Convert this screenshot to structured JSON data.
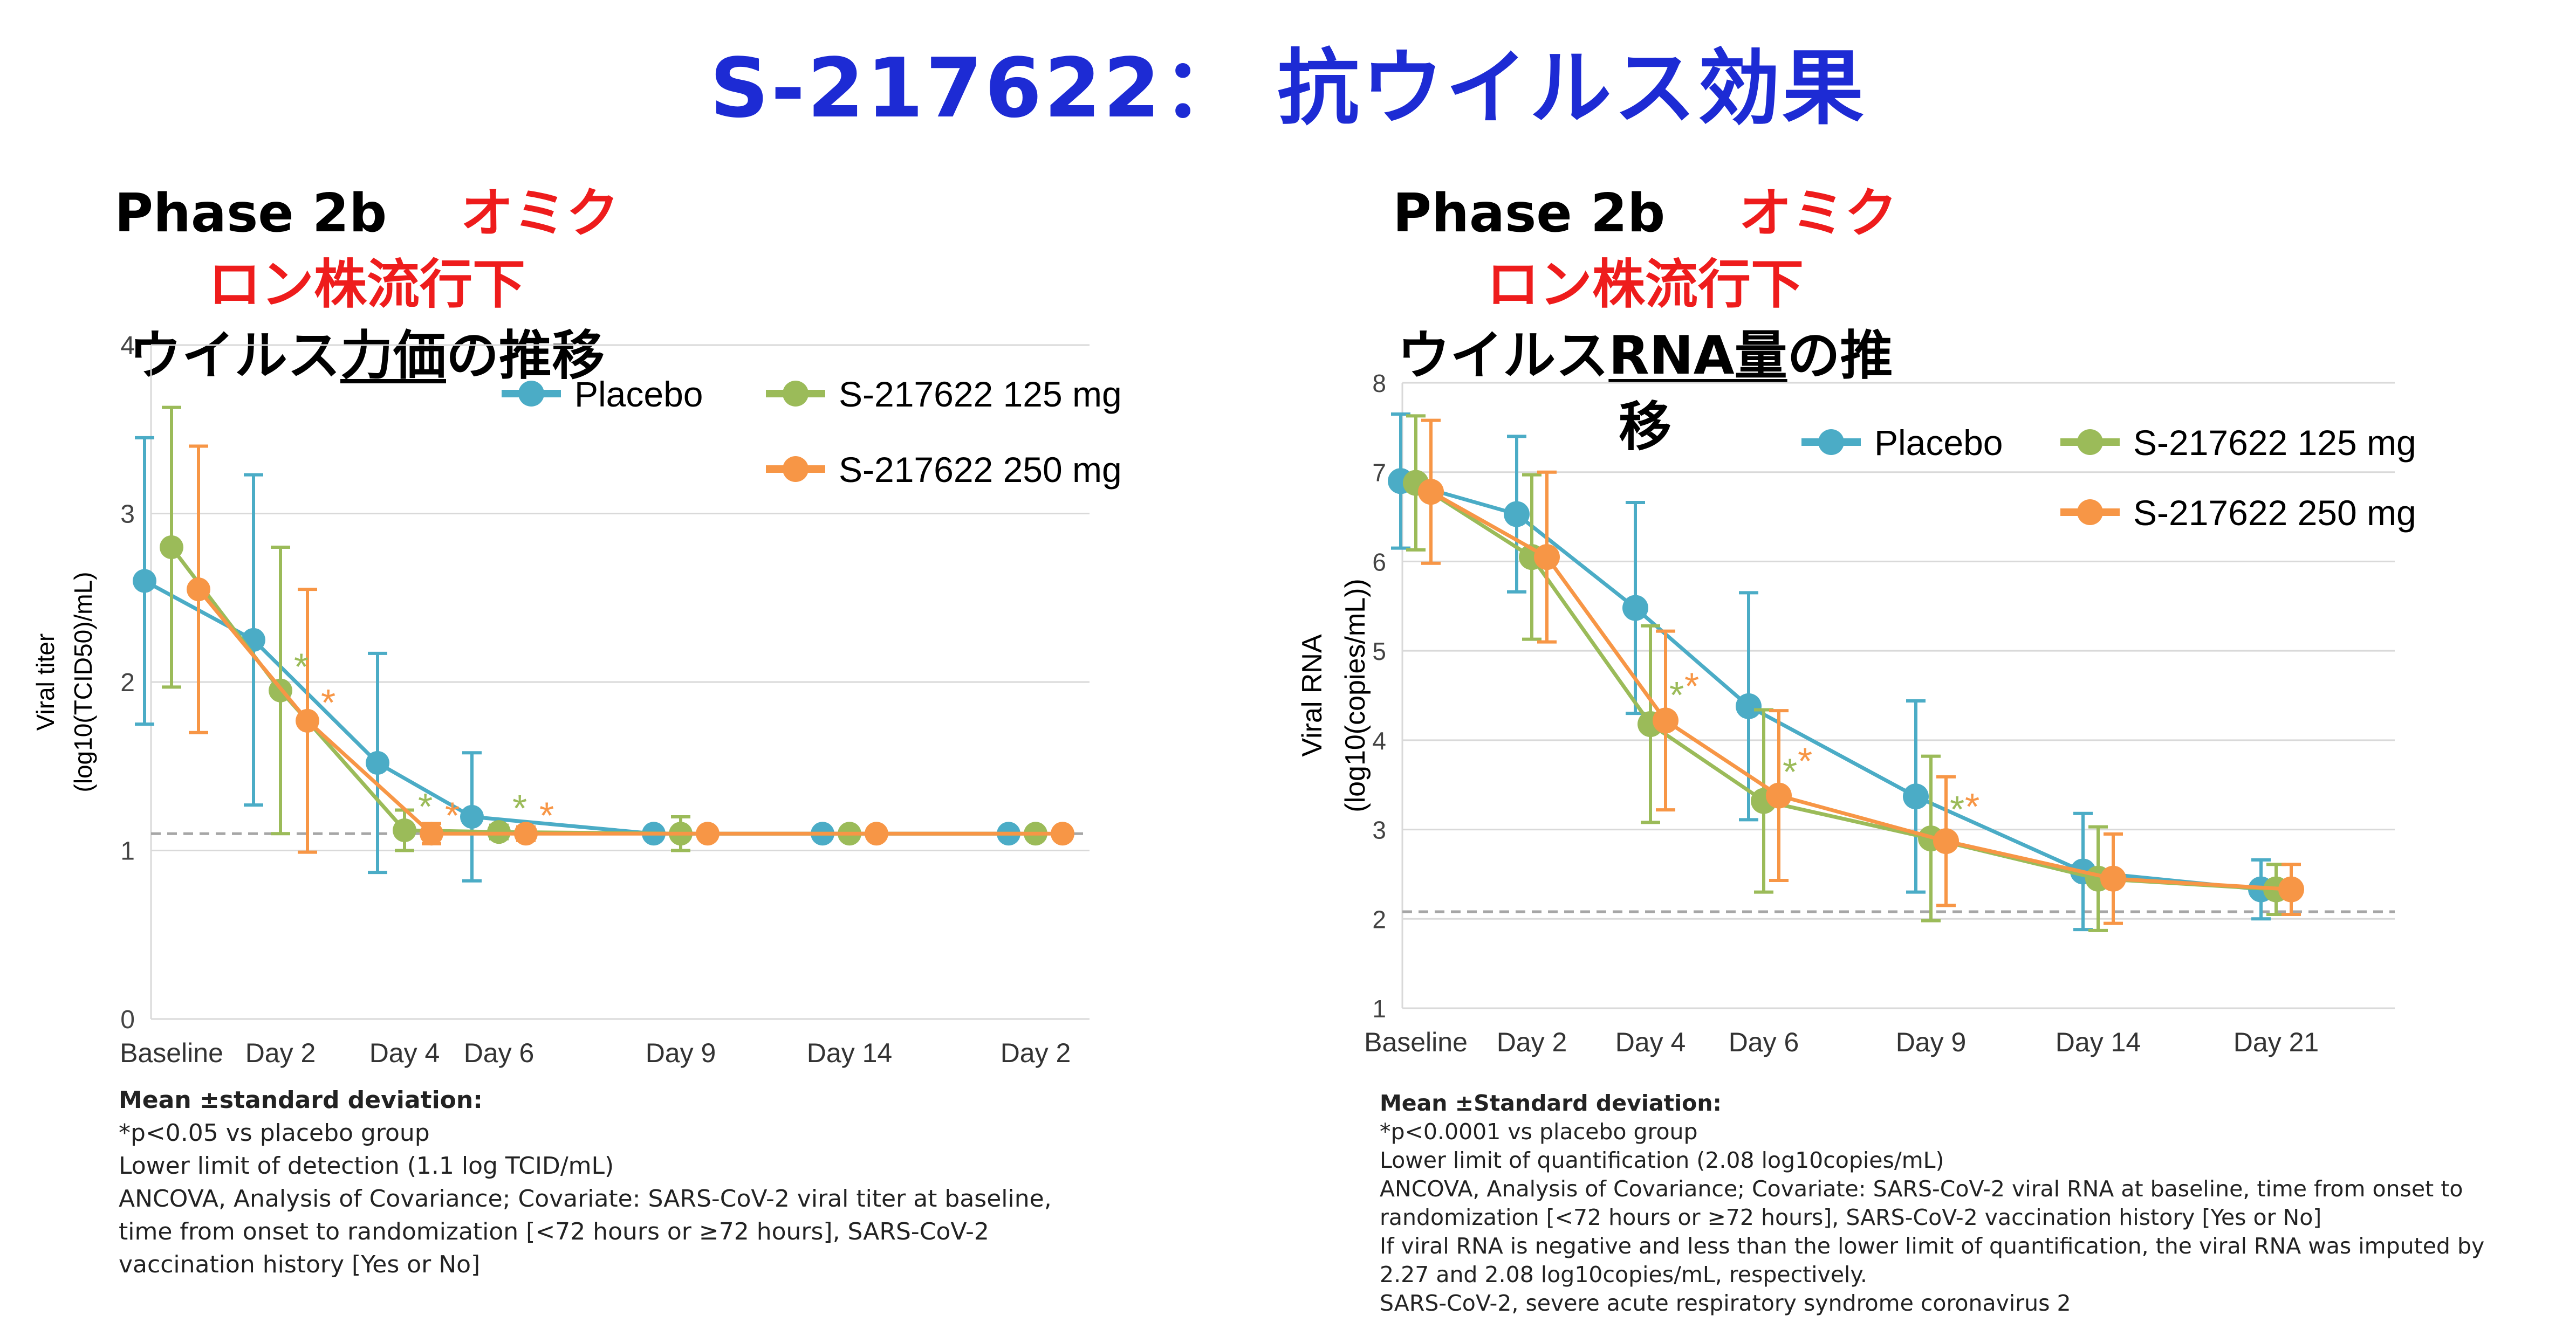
{
  "title": "S-217622： 抗ウイルス効果",
  "colors": {
    "placebo": "#4bacc6",
    "dose125": "#9bbb59",
    "dose250": "#f79646",
    "title": "#1d2bd4",
    "accent_red": "#ee1c1c"
  },
  "left": {
    "heading_phase": "Phase 2b",
    "heading_red": "オミクロン株流行下",
    "heading_line2_pre": "ウイルス",
    "heading_line2_ul": "力価",
    "heading_line2_post": "の推移",
    "notes": {
      "head": "Mean ±standard deviation:",
      "lines": [
        "*p<0.05 vs placebo group",
        "Lower limit of detection (1.1 log TCID/mL)",
        "ANCOVA, Analysis of Covariance; Covariate: SARS-CoV-2 viral titer at baseline,",
        "time from onset to randomization [<72 hours or ≥72 hours], SARS-CoV-2",
        "vaccination history [Yes or No]"
      ]
    }
  },
  "right": {
    "heading_phase": "Phase 2b",
    "heading_red": "オミクロン株流行下",
    "heading_line2_pre": "ウイルス",
    "heading_line2_ul": "RNA量",
    "heading_line2_post": "の推移",
    "notes": {
      "head": "Mean ±Standard deviation:",
      "lines": [
        "*p<0.0001 vs placebo group",
        "Lower limit of quantification (2.08 log10copies/mL)",
        "ANCOVA, Analysis of Covariance; Covariate: SARS-CoV-2 viral RNA at baseline, time from onset to",
        "randomization [<72 hours or ≥72 hours], SARS-CoV-2 vaccination history [Yes or No]",
        "If viral RNA is negative and less than the lower limit of quantification, the viral RNA was imputed by",
        "2.27 and 2.08 log10copies/mL, respectively.",
        "SARS-CoV-2, severe acute respiratory syndrome coronavirus 2"
      ]
    }
  },
  "chart_data": [
    {
      "type": "line",
      "title": "ウイルス力価の推移",
      "xlabel": "",
      "ylabel_line1": "Viral titer",
      "ylabel_line2": "(log10(TCID50)/mL)",
      "categories": [
        "Baseline",
        "Day 2",
        "Day 4",
        "Day 6",
        "Day 9",
        "Day 14",
        "Day 2"
      ],
      "ylim": [
        0,
        4
      ],
      "yticks": [
        0,
        1,
        2,
        3,
        4
      ],
      "reference_line": 1.1,
      "series": [
        {
          "name": "Placebo",
          "key": "placebo",
          "values": [
            2.6,
            2.25,
            1.52,
            1.2,
            1.1,
            1.1,
            1.1
          ],
          "sd": [
            0.85,
            0.98,
            0.65,
            0.38,
            0,
            0,
            0
          ]
        },
        {
          "name": "S-217622 125 mg",
          "key": "dose125",
          "values": [
            2.8,
            1.95,
            1.12,
            1.11,
            1.1,
            1.1,
            1.1
          ],
          "sd": [
            0.83,
            0.85,
            0.12,
            0.04,
            0.1,
            0,
            0
          ]
        },
        {
          "name": "S-217622 250 mg",
          "key": "dose250",
          "values": [
            2.55,
            1.77,
            1.1,
            1.1,
            1.1,
            1.1,
            1.1
          ],
          "sd": [
            0.85,
            0.78,
            0.06,
            0.04,
            0,
            0,
            0
          ]
        }
      ],
      "significance": [
        "Day 2",
        "Day 4",
        "Day 6"
      ],
      "legend": [
        "Placebo",
        "S-217622 125 mg",
        "S-217622 250 mg"
      ],
      "annotation": "*"
    },
    {
      "type": "line",
      "title": "ウイルスRNA量の推移",
      "xlabel": "",
      "ylabel_line1": "Viral RNA",
      "ylabel_line2": "(log10(copies/mL))",
      "categories": [
        "Baseline",
        "Day 2",
        "Day 4",
        "Day 6",
        "Day 9",
        "Day 14",
        "Day 21"
      ],
      "ylim": [
        1,
        8
      ],
      "yticks": [
        1,
        2,
        3,
        4,
        5,
        6,
        7,
        8
      ],
      "reference_line": 2.08,
      "series": [
        {
          "name": "Placebo",
          "key": "placebo",
          "values": [
            6.9,
            6.53,
            5.48,
            4.38,
            3.37,
            2.53,
            2.33
          ],
          "sd": [
            0.75,
            0.87,
            1.18,
            1.27,
            1.07,
            0.65,
            0.33
          ]
        },
        {
          "name": "S-217622 125 mg",
          "key": "dose125",
          "values": [
            6.88,
            6.05,
            4.18,
            3.32,
            2.9,
            2.45,
            2.33
          ],
          "sd": [
            0.75,
            0.92,
            1.1,
            1.02,
            0.92,
            0.58,
            0.28
          ]
        },
        {
          "name": "S-217622 250 mg",
          "key": "dose250",
          "values": [
            6.78,
            6.05,
            4.22,
            3.38,
            2.87,
            2.45,
            2.33
          ],
          "sd": [
            0.8,
            0.95,
            1.0,
            0.95,
            0.72,
            0.5,
            0.28
          ]
        }
      ],
      "significance": [
        "Day 4",
        "Day 6",
        "Day 9"
      ],
      "legend": [
        "Placebo",
        "S-217622 125 mg",
        "S-217622 250 mg"
      ],
      "annotation": "*"
    }
  ]
}
